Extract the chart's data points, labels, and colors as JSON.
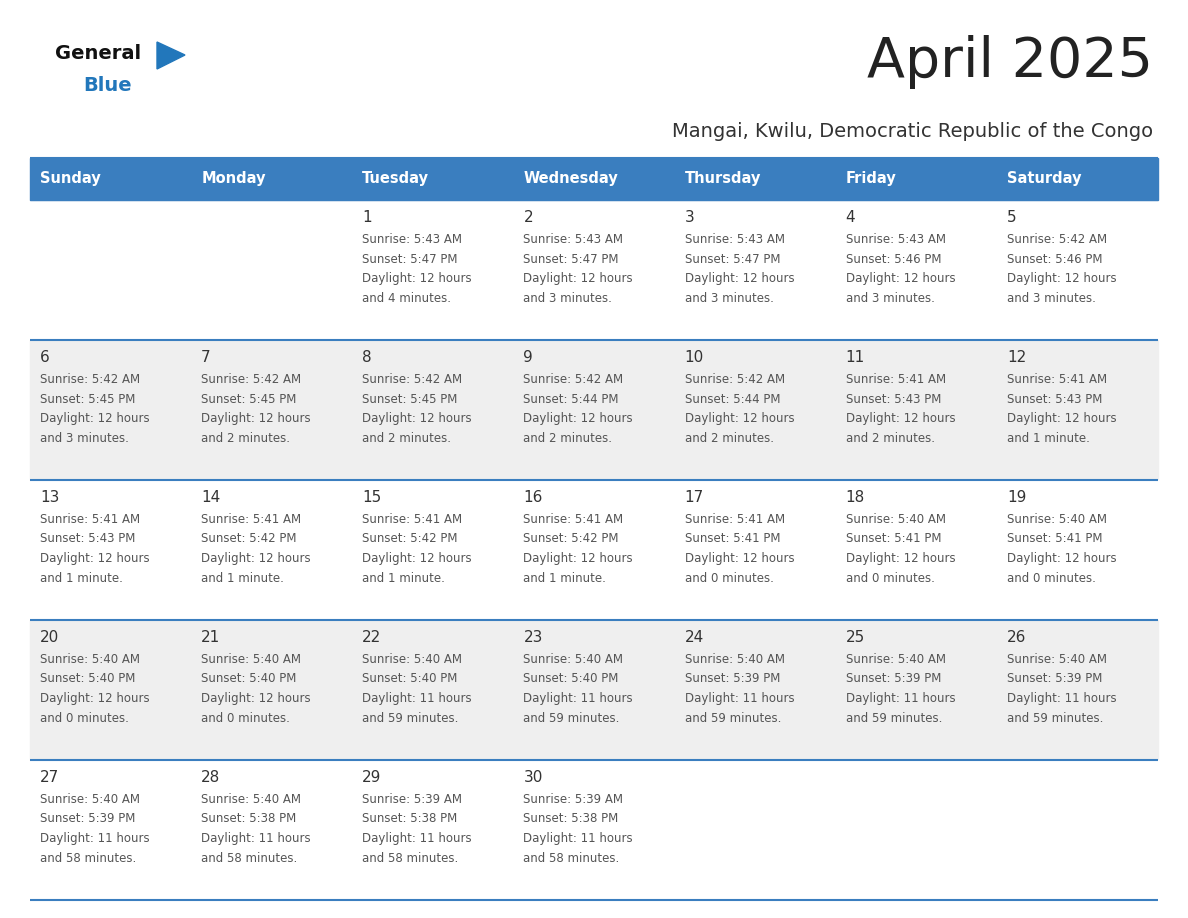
{
  "title": "April 2025",
  "subtitle": "Mangai, Kwilu, Democratic Republic of the Congo",
  "days_of_week": [
    "Sunday",
    "Monday",
    "Tuesday",
    "Wednesday",
    "Thursday",
    "Friday",
    "Saturday"
  ],
  "header_bg": "#3A7EBF",
  "header_text": "#FFFFFF",
  "row_bg_odd": "#FFFFFF",
  "row_bg_even": "#EFEFEF",
  "border_color": "#3A7EBF",
  "separator_color": "#3A7EBF",
  "day_number_color": "#333333",
  "cell_text_color": "#555555",
  "title_color": "#222222",
  "subtitle_color": "#333333",
  "logo_general_color": "#111111",
  "logo_blue_color": "#2277BB",
  "logo_triangle_color": "#2277BB",
  "calendar_data": [
    [
      {
        "day": null,
        "sunrise": null,
        "sunset": null,
        "daylight_line1": null,
        "daylight_line2": null
      },
      {
        "day": null,
        "sunrise": null,
        "sunset": null,
        "daylight_line1": null,
        "daylight_line2": null
      },
      {
        "day": 1,
        "sunrise": "5:43 AM",
        "sunset": "5:47 PM",
        "daylight_line1": "12 hours",
        "daylight_line2": "and 4 minutes."
      },
      {
        "day": 2,
        "sunrise": "5:43 AM",
        "sunset": "5:47 PM",
        "daylight_line1": "12 hours",
        "daylight_line2": "and 3 minutes."
      },
      {
        "day": 3,
        "sunrise": "5:43 AM",
        "sunset": "5:47 PM",
        "daylight_line1": "12 hours",
        "daylight_line2": "and 3 minutes."
      },
      {
        "day": 4,
        "sunrise": "5:43 AM",
        "sunset": "5:46 PM",
        "daylight_line1": "12 hours",
        "daylight_line2": "and 3 minutes."
      },
      {
        "day": 5,
        "sunrise": "5:42 AM",
        "sunset": "5:46 PM",
        "daylight_line1": "12 hours",
        "daylight_line2": "and 3 minutes."
      }
    ],
    [
      {
        "day": 6,
        "sunrise": "5:42 AM",
        "sunset": "5:45 PM",
        "daylight_line1": "12 hours",
        "daylight_line2": "and 3 minutes."
      },
      {
        "day": 7,
        "sunrise": "5:42 AM",
        "sunset": "5:45 PM",
        "daylight_line1": "12 hours",
        "daylight_line2": "and 2 minutes."
      },
      {
        "day": 8,
        "sunrise": "5:42 AM",
        "sunset": "5:45 PM",
        "daylight_line1": "12 hours",
        "daylight_line2": "and 2 minutes."
      },
      {
        "day": 9,
        "sunrise": "5:42 AM",
        "sunset": "5:44 PM",
        "daylight_line1": "12 hours",
        "daylight_line2": "and 2 minutes."
      },
      {
        "day": 10,
        "sunrise": "5:42 AM",
        "sunset": "5:44 PM",
        "daylight_line1": "12 hours",
        "daylight_line2": "and 2 minutes."
      },
      {
        "day": 11,
        "sunrise": "5:41 AM",
        "sunset": "5:43 PM",
        "daylight_line1": "12 hours",
        "daylight_line2": "and 2 minutes."
      },
      {
        "day": 12,
        "sunrise": "5:41 AM",
        "sunset": "5:43 PM",
        "daylight_line1": "12 hours",
        "daylight_line2": "and 1 minute."
      }
    ],
    [
      {
        "day": 13,
        "sunrise": "5:41 AM",
        "sunset": "5:43 PM",
        "daylight_line1": "12 hours",
        "daylight_line2": "and 1 minute."
      },
      {
        "day": 14,
        "sunrise": "5:41 AM",
        "sunset": "5:42 PM",
        "daylight_line1": "12 hours",
        "daylight_line2": "and 1 minute."
      },
      {
        "day": 15,
        "sunrise": "5:41 AM",
        "sunset": "5:42 PM",
        "daylight_line1": "12 hours",
        "daylight_line2": "and 1 minute."
      },
      {
        "day": 16,
        "sunrise": "5:41 AM",
        "sunset": "5:42 PM",
        "daylight_line1": "12 hours",
        "daylight_line2": "and 1 minute."
      },
      {
        "day": 17,
        "sunrise": "5:41 AM",
        "sunset": "5:41 PM",
        "daylight_line1": "12 hours",
        "daylight_line2": "and 0 minutes."
      },
      {
        "day": 18,
        "sunrise": "5:40 AM",
        "sunset": "5:41 PM",
        "daylight_line1": "12 hours",
        "daylight_line2": "and 0 minutes."
      },
      {
        "day": 19,
        "sunrise": "5:40 AM",
        "sunset": "5:41 PM",
        "daylight_line1": "12 hours",
        "daylight_line2": "and 0 minutes."
      }
    ],
    [
      {
        "day": 20,
        "sunrise": "5:40 AM",
        "sunset": "5:40 PM",
        "daylight_line1": "12 hours",
        "daylight_line2": "and 0 minutes."
      },
      {
        "day": 21,
        "sunrise": "5:40 AM",
        "sunset": "5:40 PM",
        "daylight_line1": "12 hours",
        "daylight_line2": "and 0 minutes."
      },
      {
        "day": 22,
        "sunrise": "5:40 AM",
        "sunset": "5:40 PM",
        "daylight_line1": "11 hours",
        "daylight_line2": "and 59 minutes."
      },
      {
        "day": 23,
        "sunrise": "5:40 AM",
        "sunset": "5:40 PM",
        "daylight_line1": "11 hours",
        "daylight_line2": "and 59 minutes."
      },
      {
        "day": 24,
        "sunrise": "5:40 AM",
        "sunset": "5:39 PM",
        "daylight_line1": "11 hours",
        "daylight_line2": "and 59 minutes."
      },
      {
        "day": 25,
        "sunrise": "5:40 AM",
        "sunset": "5:39 PM",
        "daylight_line1": "11 hours",
        "daylight_line2": "and 59 minutes."
      },
      {
        "day": 26,
        "sunrise": "5:40 AM",
        "sunset": "5:39 PM",
        "daylight_line1": "11 hours",
        "daylight_line2": "and 59 minutes."
      }
    ],
    [
      {
        "day": 27,
        "sunrise": "5:40 AM",
        "sunset": "5:39 PM",
        "daylight_line1": "11 hours",
        "daylight_line2": "and 58 minutes."
      },
      {
        "day": 28,
        "sunrise": "5:40 AM",
        "sunset": "5:38 PM",
        "daylight_line1": "11 hours",
        "daylight_line2": "and 58 minutes."
      },
      {
        "day": 29,
        "sunrise": "5:39 AM",
        "sunset": "5:38 PM",
        "daylight_line1": "11 hours",
        "daylight_line2": "and 58 minutes."
      },
      {
        "day": 30,
        "sunrise": "5:39 AM",
        "sunset": "5:38 PM",
        "daylight_line1": "11 hours",
        "daylight_line2": "and 58 minutes."
      },
      {
        "day": null,
        "sunrise": null,
        "sunset": null,
        "daylight_line1": null,
        "daylight_line2": null
      },
      {
        "day": null,
        "sunrise": null,
        "sunset": null,
        "daylight_line1": null,
        "daylight_line2": null
      },
      {
        "day": null,
        "sunrise": null,
        "sunset": null,
        "daylight_line1": null,
        "daylight_line2": null
      }
    ]
  ]
}
